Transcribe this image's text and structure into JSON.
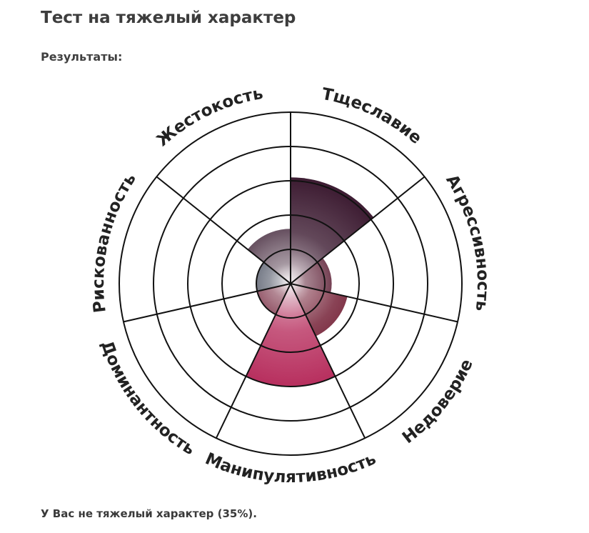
{
  "page": {
    "title": "Тест на тяжелый характер",
    "results_heading": "Результаты:",
    "result_text": "У Вас не тяжелый характер (35%)."
  },
  "chart_data": {
    "type": "polar-area",
    "max": 5,
    "grid_rings": 5,
    "categories": [
      "Тщеславие",
      "Агрессивность",
      "Недоверие",
      "Манипулятивность",
      "Доминантность",
      "Рискованность",
      "Жестокость"
    ],
    "values": [
      3.1,
      1.2,
      1.7,
      3.0,
      1.0,
      1.0,
      1.6
    ],
    "colors": {
      "Тщеславие": "#3e1d33",
      "Агрессивность": "#5f2238",
      "Недоверие": "#7a2a3f",
      "Манипулятивность": "#b8305f",
      "Доминантность": "#7a2f45",
      "Рискованность": "#4c5262",
      "Жестокость": "#5c4455"
    },
    "grid_color": "#111111",
    "title": "",
    "xlabel": "",
    "ylabel": ""
  }
}
